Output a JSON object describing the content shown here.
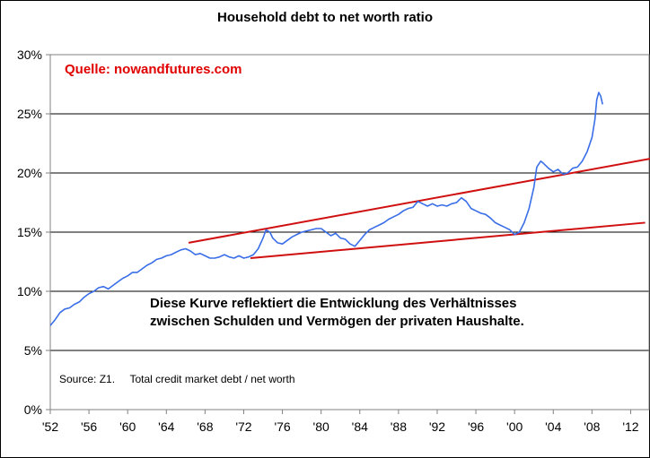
{
  "chart_data": {
    "type": "line",
    "title": "Household debt to net worth ratio",
    "xlabel": "",
    "ylabel": "",
    "xlim": [
      1952,
      2014
    ],
    "ylim": [
      0,
      30
    ],
    "x_ticks": [
      "'52",
      "'56",
      "'60",
      "'64",
      "'68",
      "'72",
      "'76",
      "'80",
      "'84",
      "'88",
      "'92",
      "'96",
      "'00",
      "'04",
      "'08",
      "'12"
    ],
    "y_ticks": [
      "0%",
      "5%",
      "10%",
      "15%",
      "20%",
      "25%",
      "30%"
    ],
    "grid": "horizontal",
    "series": [
      {
        "color": "#3a6ee8",
        "x": [
          1952.0,
          1952.5,
          1953.0,
          1953.5,
          1954.0,
          1954.5,
          1955.0,
          1955.5,
          1956.0,
          1956.5,
          1957.0,
          1957.5,
          1958.0,
          1958.5,
          1959.0,
          1959.5,
          1960.0,
          1960.5,
          1961.0,
          1961.5,
          1962.0,
          1962.5,
          1963.0,
          1963.5,
          1964.0,
          1964.5,
          1965.0,
          1965.5,
          1966.0,
          1966.5,
          1967.0,
          1967.5,
          1968.0,
          1968.5,
          1969.0,
          1969.5,
          1970.0,
          1970.5,
          1971.0,
          1971.5,
          1972.0,
          1972.5,
          1973.0,
          1973.5,
          1974.0,
          1974.3,
          1974.7,
          1975.0,
          1975.5,
          1976.0,
          1976.5,
          1977.0,
          1977.5,
          1978.0,
          1978.5,
          1979.0,
          1979.5,
          1980.0,
          1980.5,
          1981.0,
          1981.5,
          1982.0,
          1982.5,
          1983.0,
          1983.5,
          1984.0,
          1984.5,
          1985.0,
          1985.5,
          1986.0,
          1986.5,
          1987.0,
          1987.5,
          1988.0,
          1988.5,
          1989.0,
          1989.5,
          1990.0,
          1990.5,
          1991.0,
          1991.5,
          1992.0,
          1992.5,
          1993.0,
          1993.5,
          1994.0,
          1994.5,
          1995.0,
          1995.5,
          1996.0,
          1996.5,
          1997.0,
          1997.5,
          1998.0,
          1998.5,
          1999.0,
          1999.5,
          2000.0,
          2000.5,
          2001.0,
          2001.5,
          2002.0,
          2002.3,
          2002.7,
          2003.0,
          2003.5,
          2004.0,
          2004.5,
          2005.0,
          2005.5,
          2006.0,
          2006.5,
          2007.0,
          2007.5,
          2008.0,
          2008.3,
          2008.5,
          2008.7,
          2008.9,
          2009.1
        ],
        "y": [
          7.1,
          7.6,
          8.2,
          8.5,
          8.6,
          8.9,
          9.1,
          9.5,
          9.8,
          10.0,
          10.3,
          10.4,
          10.2,
          10.5,
          10.8,
          11.1,
          11.3,
          11.6,
          11.6,
          11.9,
          12.2,
          12.4,
          12.7,
          12.8,
          13.0,
          13.1,
          13.3,
          13.5,
          13.6,
          13.4,
          13.1,
          13.2,
          13.0,
          12.8,
          12.8,
          12.9,
          13.1,
          12.9,
          12.8,
          13.0,
          12.8,
          12.9,
          13.1,
          13.6,
          14.5,
          15.2,
          15.0,
          14.5,
          14.1,
          14.0,
          14.3,
          14.6,
          14.8,
          15.0,
          15.1,
          15.2,
          15.3,
          15.3,
          15.0,
          14.7,
          14.9,
          14.5,
          14.4,
          14.0,
          13.8,
          14.3,
          14.8,
          15.2,
          15.4,
          15.6,
          15.8,
          16.1,
          16.3,
          16.5,
          16.8,
          17.0,
          17.1,
          17.6,
          17.4,
          17.2,
          17.4,
          17.2,
          17.3,
          17.2,
          17.4,
          17.5,
          17.9,
          17.6,
          17.0,
          16.8,
          16.6,
          16.5,
          16.2,
          15.8,
          15.6,
          15.4,
          15.2,
          14.8,
          15.0,
          15.8,
          17.0,
          18.8,
          20.5,
          21.0,
          20.8,
          20.4,
          20.1,
          20.3,
          19.9,
          20.0,
          20.4,
          20.5,
          21.0,
          21.8,
          23.0,
          24.5,
          26.2,
          26.8,
          26.5,
          25.8
        ]
      }
    ],
    "trend_lines": [
      {
        "color": "#d01010",
        "x": [
          1966.3,
          2014.0
        ],
        "y": [
          14.1,
          21.2
        ]
      },
      {
        "color": "#d01010",
        "x": [
          1972.7,
          2013.5
        ],
        "y": [
          12.8,
          15.8
        ]
      }
    ],
    "annotations": {
      "quelle": "Quelle: nowandfutures.com",
      "desc_line1": "Diese Kurve reflektiert die Entwicklung des Verhältnisses",
      "desc_line2": "zwischen Schulden und Vermögen der privaten Haushalte.",
      "source": "Source: Z1.     Total credit market debt / net worth"
    }
  }
}
